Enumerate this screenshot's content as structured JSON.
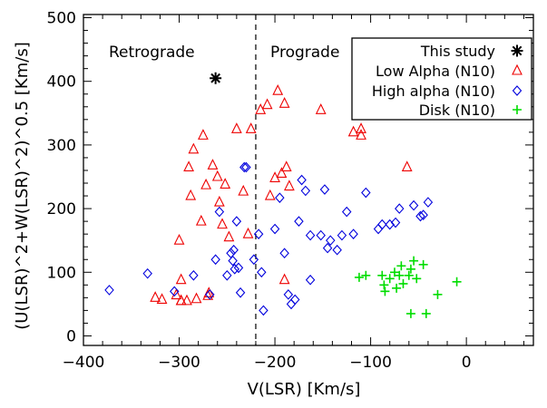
{
  "chart_data": {
    "type": "scatter",
    "xlabel": "V(LSR)  [Km/s]",
    "ylabel": "(U(LSR)^2+W(LSR)^2)^0.5  [Km/s]",
    "xlim": [
      -400,
      70
    ],
    "ylim": [
      -15,
      505
    ],
    "x_ticks": [
      -400,
      -300,
      -200,
      -100,
      0
    ],
    "x_tick_labels": [
      "−400",
      "−300",
      "−200",
      "−100",
      "0"
    ],
    "y_ticks": [
      0,
      100,
      200,
      300,
      400,
      500
    ],
    "y_tick_labels": [
      "0",
      "100",
      "200",
      "300",
      "400",
      "500"
    ],
    "x_minor_step": 20,
    "y_minor_step": 20,
    "grid": false,
    "legend_position": "top-right",
    "annotations": [
      {
        "text": "Retrograde",
        "position": "top-left"
      },
      {
        "text": "Prograde",
        "position": "top-center"
      }
    ],
    "divider": {
      "x": -220,
      "style": "dashed",
      "color": "#000000"
    },
    "series": [
      {
        "name": "This study",
        "marker": "asterisk",
        "color": "#000000",
        "points": [
          [
            -262,
            405
          ]
        ]
      },
      {
        "name": "Low Alpha (N10)",
        "marker": "triangle",
        "color": "#ee0000",
        "points": [
          [
            -325,
            60
          ],
          [
            -318,
            57
          ],
          [
            -303,
            64
          ],
          [
            -300,
            150
          ],
          [
            -298,
            55
          ],
          [
            -292,
            55
          ],
          [
            -290,
            265
          ],
          [
            -288,
            220
          ],
          [
            -285,
            293
          ],
          [
            -282,
            58
          ],
          [
            -277,
            180
          ],
          [
            -275,
            315
          ],
          [
            -272,
            237
          ],
          [
            -270,
            63
          ],
          [
            -269,
            67
          ],
          [
            -265,
            268
          ],
          [
            -260,
            250
          ],
          [
            -258,
            210
          ],
          [
            -255,
            175
          ],
          [
            -252,
            238
          ],
          [
            -248,
            155
          ],
          [
            -240,
            325
          ],
          [
            -233,
            227
          ],
          [
            -228,
            160
          ],
          [
            -225,
            325
          ],
          [
            -215,
            355
          ],
          [
            -208,
            363
          ],
          [
            -205,
            220
          ],
          [
            -200,
            248
          ],
          [
            -197,
            385
          ],
          [
            -193,
            255
          ],
          [
            -190,
            365
          ],
          [
            -188,
            265
          ],
          [
            -185,
            235
          ],
          [
            -152,
            355
          ],
          [
            -118,
            320
          ],
          [
            -110,
            315
          ],
          [
            -110,
            325
          ],
          [
            -62,
            265
          ],
          [
            -190,
            88
          ],
          [
            -298,
            88
          ],
          [
            -298,
            55
          ]
        ]
      },
      {
        "name": "High alpha (N10)",
        "marker": "diamond",
        "color": "#0000dd",
        "points": [
          [
            -373,
            72
          ],
          [
            -333,
            98
          ],
          [
            -305,
            70
          ],
          [
            -285,
            95
          ],
          [
            -268,
            65
          ],
          [
            -262,
            120
          ],
          [
            -258,
            195
          ],
          [
            -250,
            95
          ],
          [
            -246,
            130
          ],
          [
            -244,
            118
          ],
          [
            -243,
            135
          ],
          [
            -242,
            105
          ],
          [
            -240,
            180
          ],
          [
            -236,
            68
          ],
          [
            -232,
            265
          ],
          [
            -230,
            265
          ],
          [
            -222,
            120
          ],
          [
            -217,
            160
          ],
          [
            -214,
            100
          ],
          [
            -212,
            40
          ],
          [
            -200,
            168
          ],
          [
            -195,
            217
          ],
          [
            -190,
            130
          ],
          [
            -186,
            65
          ],
          [
            -183,
            50
          ],
          [
            -179,
            57
          ],
          [
            -175,
            180
          ],
          [
            -172,
            245
          ],
          [
            -168,
            228
          ],
          [
            -163,
            88
          ],
          [
            -152,
            158
          ],
          [
            -148,
            230
          ],
          [
            -145,
            138
          ],
          [
            -142,
            150
          ],
          [
            -135,
            135
          ],
          [
            -130,
            158
          ],
          [
            -125,
            195
          ],
          [
            -118,
            160
          ],
          [
            -105,
            225
          ],
          [
            -92,
            168
          ],
          [
            -88,
            175
          ],
          [
            -80,
            175
          ],
          [
            -74,
            178
          ],
          [
            -70,
            200
          ],
          [
            -55,
            205
          ],
          [
            -45,
            190
          ],
          [
            -40,
            210
          ],
          [
            -48,
            188
          ],
          [
            -163,
            158
          ],
          [
            -238,
            107
          ]
        ]
      },
      {
        "name": "Disk (N10)",
        "marker": "plus",
        "color": "#00dd00",
        "points": [
          [
            -112,
            92
          ],
          [
            -105,
            95
          ],
          [
            -88,
            95
          ],
          [
            -86,
            80
          ],
          [
            -85,
            70
          ],
          [
            -80,
            90
          ],
          [
            -75,
            100
          ],
          [
            -73,
            75
          ],
          [
            -70,
            95
          ],
          [
            -68,
            110
          ],
          [
            -60,
            95
          ],
          [
            -58,
            105
          ],
          [
            -55,
            118
          ],
          [
            -52,
            90
          ],
          [
            -58,
            35
          ],
          [
            -45,
            112
          ],
          [
            -42,
            35
          ],
          [
            -30,
            65
          ],
          [
            -10,
            85
          ],
          [
            -66,
            82
          ]
        ]
      }
    ]
  }
}
